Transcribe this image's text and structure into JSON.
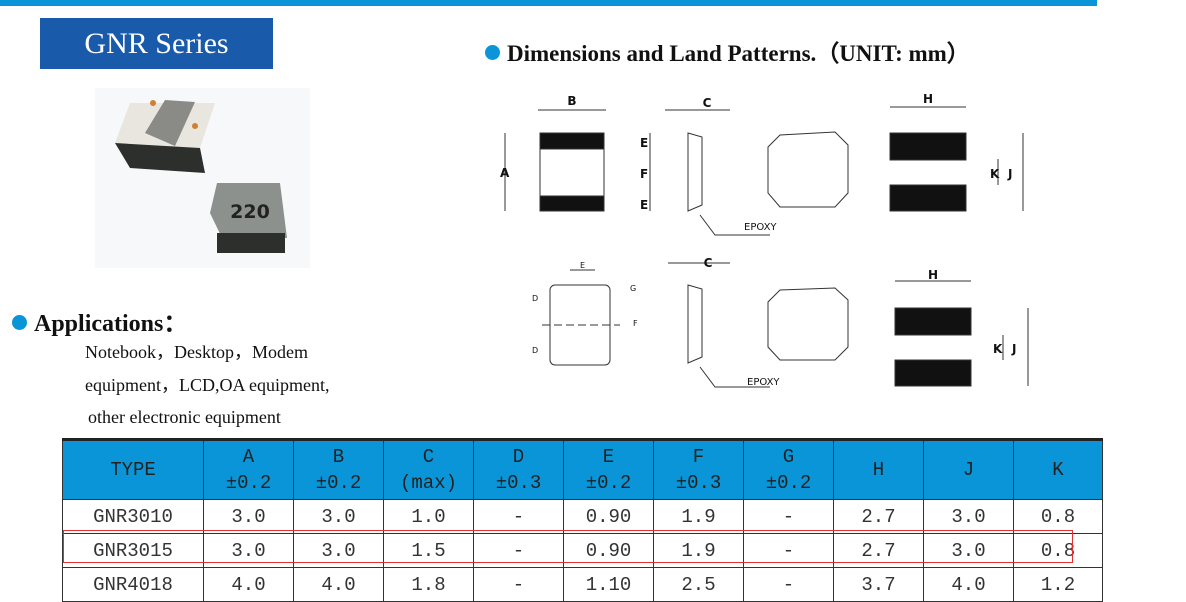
{
  "title": "GNR Series",
  "dimensions_heading": "Dimensions and Land Patterns.（UNIT: mm）",
  "applications": {
    "heading": "Applications：",
    "lines": [
      "Notebook，Desktop，Modem",
      "equipment，LCD,OA equipment,",
      "other electronic equipment"
    ]
  },
  "photo": {
    "marking": "220"
  },
  "drawings": {
    "labels": {
      "A": "A",
      "B": "B",
      "C": "C",
      "D": "D",
      "E": "E",
      "F": "F",
      "G": "G",
      "H": "H",
      "J": "J",
      "K": "K",
      "epoxy": "EPOXY"
    }
  },
  "colors": {
    "accent": "#0a95d8",
    "title_bg": "#1a5aab",
    "highlight": "#e03030"
  },
  "table": {
    "headers": [
      [
        "TYPE",
        ""
      ],
      [
        "A",
        "±0.2"
      ],
      [
        "B",
        "±0.2"
      ],
      [
        "C",
        "(max)"
      ],
      [
        "D",
        "±0.3"
      ],
      [
        "E",
        "±0.2"
      ],
      [
        "F",
        "±0.3"
      ],
      [
        "G",
        "±0.2"
      ],
      [
        "H",
        ""
      ],
      [
        "J",
        ""
      ],
      [
        "K",
        ""
      ]
    ],
    "rows": [
      [
        "GNR3010",
        "3.0",
        "3.0",
        "1.0",
        "-",
        "0.90",
        "1.9",
        "-",
        "2.7",
        "3.0",
        "0.8"
      ],
      [
        "GNR3015",
        "3.0",
        "3.0",
        "1.5",
        "-",
        "0.90",
        "1.9",
        "-",
        "2.7",
        "3.0",
        "0.8"
      ],
      [
        "GNR4018",
        "4.0",
        "4.0",
        "1.8",
        "-",
        "1.10",
        "2.5",
        "-",
        "3.7",
        "4.0",
        "1.2"
      ]
    ],
    "highlighted_row": 1
  }
}
